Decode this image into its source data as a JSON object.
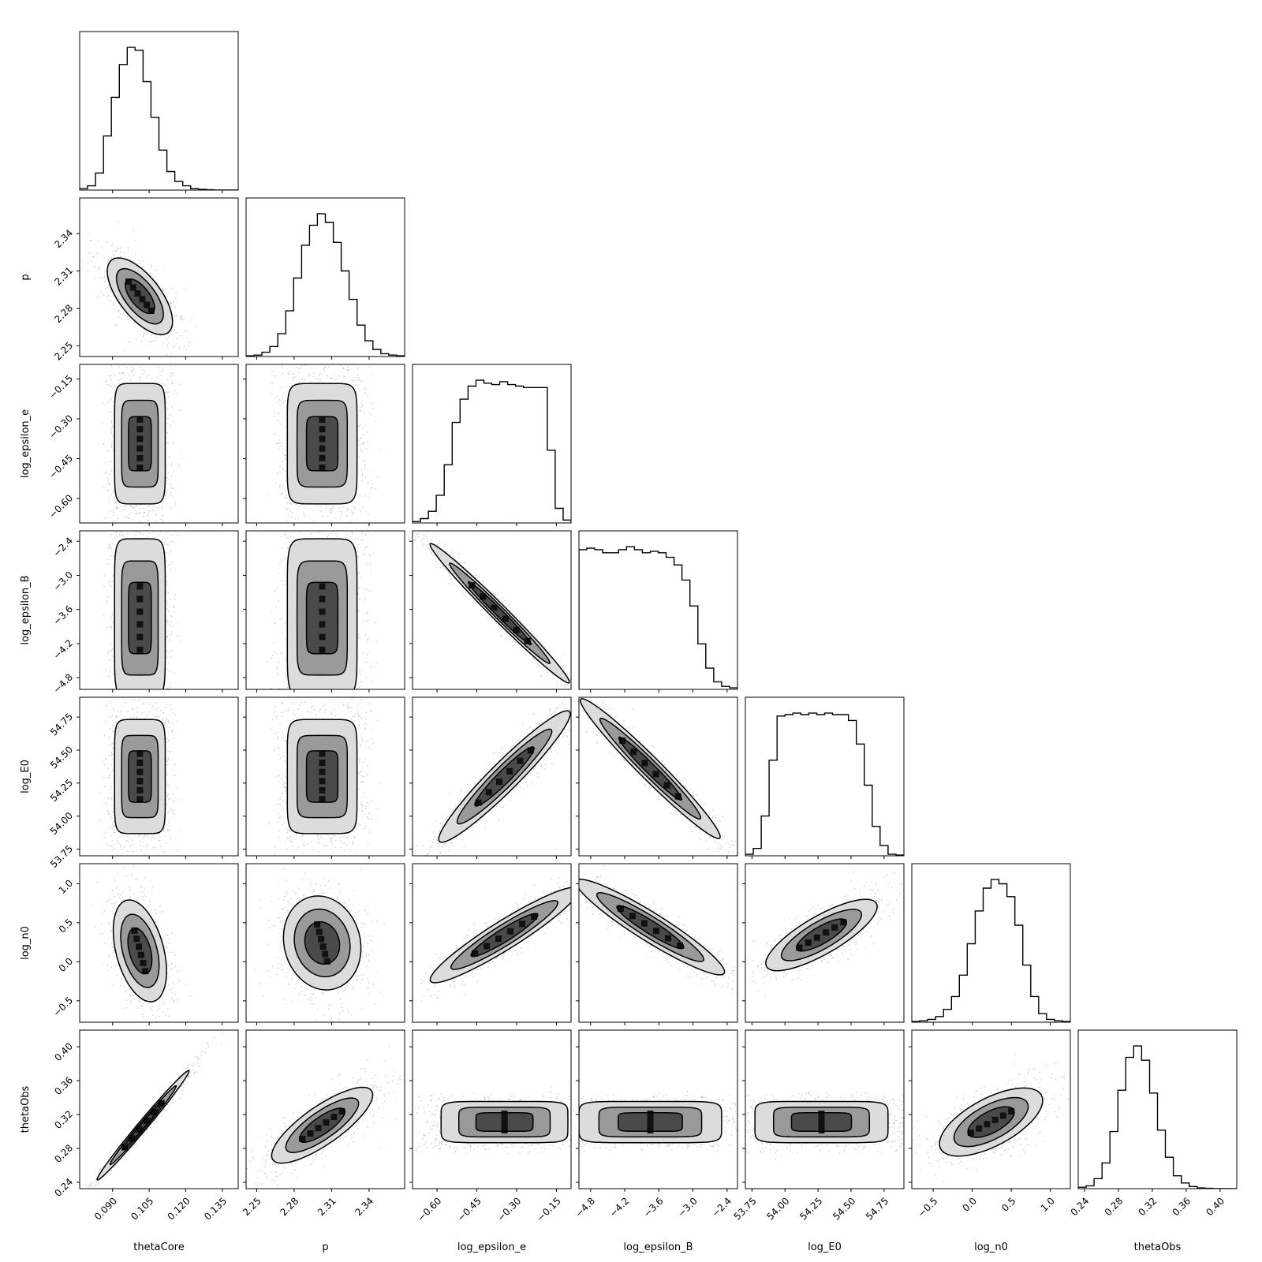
{
  "chart_data": {
    "type": "corner",
    "parameters": [
      "thetaCore",
      "p",
      "log_epsilon_e",
      "log_epsilon_B",
      "log_E0",
      "log_n0",
      "thetaObs"
    ],
    "ticks": {
      "thetaCore": [
        "0.090",
        "0.105",
        "0.120",
        "0.135"
      ],
      "p": [
        "2.25",
        "2.28",
        "2.31",
        "2.34"
      ],
      "log_epsilon_e": [
        "−0.60",
        "−0.45",
        "−0.30",
        "−0.15"
      ],
      "log_epsilon_B": [
        "−4.8",
        "−4.2",
        "−3.6",
        "−3.0",
        "−2.4"
      ],
      "log_E0": [
        "53.75",
        "54.00",
        "54.25",
        "54.50",
        "54.75"
      ],
      "log_n0": [
        "−0.5",
        "0.0",
        "0.5",
        "1.0"
      ],
      "thetaObs": [
        "0.24",
        "0.28",
        "0.32",
        "0.36",
        "0.40"
      ]
    },
    "tick_values": {
      "thetaCore": [
        0.09,
        0.105,
        0.12,
        0.135
      ],
      "p": [
        2.25,
        2.28,
        2.31,
        2.34
      ],
      "log_epsilon_e": [
        -0.6,
        -0.45,
        -0.3,
        -0.15
      ],
      "log_epsilon_B": [
        -4.8,
        -4.2,
        -3.6,
        -3.0,
        -2.4
      ],
      "log_E0": [
        53.75,
        54.0,
        54.25,
        54.5,
        54.75
      ],
      "log_n0": [
        -0.5,
        0.0,
        0.5,
        1.0
      ],
      "thetaObs": [
        0.24,
        0.28,
        0.32,
        0.36,
        0.4
      ]
    },
    "ranges": {
      "thetaCore": [
        0.0765,
        0.1415
      ],
      "p": [
        2.2415,
        2.3685
      ],
      "log_epsilon_e": [
        -0.6923,
        -0.0949
      ],
      "log_epsilon_B": [
        -5.005,
        -2.2175
      ],
      "log_E0": [
        53.7,
        54.9
      ],
      "log_n0": [
        -0.7744,
        1.2563
      ],
      "thetaObs": [
        0.2325,
        0.4197
      ]
    },
    "marginals": {
      "thetaCore": [
        1,
        3,
        12,
        38,
        65,
        88,
        100,
        98,
        76,
        51,
        28,
        13,
        6,
        3,
        1,
        0.5,
        0.2,
        0,
        0,
        0
      ],
      "p": [
        0.5,
        1,
        3,
        7,
        16,
        32,
        55,
        78,
        92,
        100,
        94,
        80,
        60,
        40,
        22,
        11,
        5,
        2,
        1,
        0.5
      ],
      "log_epsilon_e": [
        1,
        3,
        8,
        19,
        40,
        69,
        85,
        94,
        98,
        96,
        95,
        97,
        95,
        94,
        93,
        93,
        93,
        50,
        10,
        2
      ],
      "log_epsilon_B": [
        92,
        93,
        92,
        90,
        90,
        92,
        94,
        92,
        90,
        91,
        90,
        87,
        82,
        72,
        55,
        30,
        14,
        5,
        2,
        1
      ],
      "log_E0": [
        1,
        5,
        27,
        65,
        95,
        96,
        97,
        96,
        97,
        96,
        97,
        96,
        96,
        92,
        76,
        48,
        20,
        7,
        1,
        0.5
      ],
      "log_n0": [
        0.5,
        1,
        2,
        4,
        9,
        18,
        33,
        55,
        78,
        94,
        100,
        97,
        88,
        68,
        40,
        18,
        6,
        2,
        1,
        0.5
      ],
      "thetaObs": [
        1,
        2,
        7,
        18,
        40,
        69,
        92,
        100,
        90,
        67,
        41,
        22,
        9,
        4,
        1.5,
        0.5,
        0.2,
        0,
        0,
        0
      ]
    },
    "note_marginal_units": "relative counts (peak = 100)",
    "grid": false,
    "legend": "none"
  }
}
